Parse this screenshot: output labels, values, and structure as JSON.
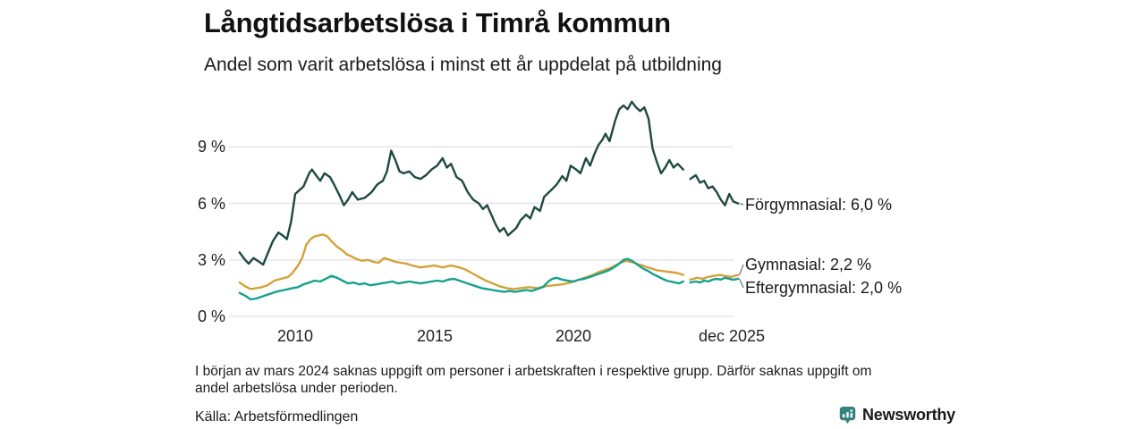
{
  "header": {
    "title": "Långtidsarbetslösa i Timrå kommun",
    "subtitle": "Andel som varit arbetslösa i minst ett år uppdelat på utbildning"
  },
  "chart_data": {
    "type": "line",
    "title": "Långtidsarbetslösa i Timrå kommun",
    "subtitle": "Andel som varit arbetslösa i minst ett år uppdelat på utbildning",
    "unit": "%",
    "grid": true,
    "legend_position": "right-of-line-ends",
    "x_axis": {
      "ticks": [
        "2010",
        "2015",
        "2020",
        "dec 2025"
      ],
      "tick_years": [
        2010,
        2015,
        2020,
        2025.92
      ],
      "range_years": [
        2008.0,
        2025.92
      ]
    },
    "y_axis": {
      "ticks": [
        "0 %",
        "3 %",
        "6 %",
        "9 %"
      ],
      "tick_values": [
        0,
        3,
        6,
        9
      ],
      "range": [
        0,
        11.7
      ]
    },
    "data_gap": "early 2024 (no labour-force data, see footnote)",
    "series": [
      {
        "name": "Förgymnasial",
        "color": "#1f4a41",
        "end_label": "Förgymnasial: 6,0 %",
        "end_value": 6.0,
        "points": [
          [
            2008.0,
            3.4
          ],
          [
            2008.2,
            3.0
          ],
          [
            2008.33,
            2.8
          ],
          [
            2008.5,
            3.1
          ],
          [
            2008.7,
            2.9
          ],
          [
            2008.85,
            2.75
          ],
          [
            2009.0,
            3.3
          ],
          [
            2009.2,
            4.0
          ],
          [
            2009.4,
            4.45
          ],
          [
            2009.55,
            4.3
          ],
          [
            2009.7,
            4.1
          ],
          [
            2009.85,
            5.0
          ],
          [
            2010.0,
            6.5
          ],
          [
            2010.15,
            6.7
          ],
          [
            2010.3,
            6.9
          ],
          [
            2010.5,
            7.6
          ],
          [
            2010.6,
            7.8
          ],
          [
            2010.75,
            7.5
          ],
          [
            2010.9,
            7.2
          ],
          [
            2011.05,
            7.6
          ],
          [
            2011.25,
            7.4
          ],
          [
            2011.4,
            7.0
          ],
          [
            2011.6,
            6.4
          ],
          [
            2011.75,
            5.9
          ],
          [
            2011.9,
            6.2
          ],
          [
            2012.05,
            6.6
          ],
          [
            2012.25,
            6.2
          ],
          [
            2012.5,
            6.3
          ],
          [
            2012.75,
            6.6
          ],
          [
            2012.95,
            7.0
          ],
          [
            2013.15,
            7.2
          ],
          [
            2013.3,
            7.7
          ],
          [
            2013.45,
            8.8
          ],
          [
            2013.6,
            8.3
          ],
          [
            2013.75,
            7.7
          ],
          [
            2013.9,
            7.6
          ],
          [
            2014.1,
            7.7
          ],
          [
            2014.3,
            7.4
          ],
          [
            2014.5,
            7.3
          ],
          [
            2014.7,
            7.5
          ],
          [
            2014.9,
            7.8
          ],
          [
            2015.1,
            8.0
          ],
          [
            2015.3,
            8.4
          ],
          [
            2015.45,
            7.9
          ],
          [
            2015.6,
            8.1
          ],
          [
            2015.8,
            7.4
          ],
          [
            2016.0,
            7.2
          ],
          [
            2016.2,
            6.6
          ],
          [
            2016.4,
            6.2
          ],
          [
            2016.6,
            6.0
          ],
          [
            2016.75,
            5.7
          ],
          [
            2016.9,
            5.9
          ],
          [
            2017.05,
            5.4
          ],
          [
            2017.2,
            4.9
          ],
          [
            2017.35,
            4.5
          ],
          [
            2017.5,
            4.7
          ],
          [
            2017.65,
            4.3
          ],
          [
            2017.8,
            4.5
          ],
          [
            2017.95,
            4.7
          ],
          [
            2018.1,
            5.1
          ],
          [
            2018.3,
            5.4
          ],
          [
            2018.45,
            5.2
          ],
          [
            2018.6,
            5.8
          ],
          [
            2018.8,
            5.6
          ],
          [
            2018.95,
            6.35
          ],
          [
            2019.2,
            6.7
          ],
          [
            2019.4,
            7.0
          ],
          [
            2019.6,
            7.45
          ],
          [
            2019.75,
            7.2
          ],
          [
            2019.9,
            8.0
          ],
          [
            2020.1,
            7.8
          ],
          [
            2020.25,
            7.6
          ],
          [
            2020.45,
            8.4
          ],
          [
            2020.6,
            8.0
          ],
          [
            2020.75,
            8.6
          ],
          [
            2020.9,
            9.1
          ],
          [
            2021.05,
            9.4
          ],
          [
            2021.15,
            9.7
          ],
          [
            2021.3,
            9.3
          ],
          [
            2021.5,
            10.4
          ],
          [
            2021.65,
            11.0
          ],
          [
            2021.8,
            11.2
          ],
          [
            2021.95,
            11.0
          ],
          [
            2022.1,
            11.4
          ],
          [
            2022.25,
            11.1
          ],
          [
            2022.4,
            10.9
          ],
          [
            2022.55,
            11.1
          ],
          [
            2022.7,
            10.5
          ],
          [
            2022.85,
            8.9
          ],
          [
            2023.0,
            8.2
          ],
          [
            2023.15,
            7.6
          ],
          [
            2023.3,
            7.9
          ],
          [
            2023.45,
            8.3
          ],
          [
            2023.6,
            7.9
          ],
          [
            2023.75,
            8.1
          ],
          [
            2023.95,
            7.8
          ],
          null,
          [
            2024.2,
            7.3
          ],
          [
            2024.4,
            7.5
          ],
          [
            2024.55,
            7.1
          ],
          [
            2024.7,
            7.2
          ],
          [
            2024.85,
            6.8
          ],
          [
            2025.0,
            6.9
          ],
          [
            2025.15,
            6.6
          ],
          [
            2025.3,
            6.2
          ],
          [
            2025.45,
            5.9
          ],
          [
            2025.6,
            6.5
          ],
          [
            2025.75,
            6.1
          ],
          [
            2025.92,
            6.0
          ]
        ]
      },
      {
        "name": "Gymnasial",
        "color": "#d4a13c",
        "end_label": "Gymnasial: 2,2 %",
        "end_value": 2.2,
        "points": [
          [
            2008.0,
            1.8
          ],
          [
            2008.2,
            1.6
          ],
          [
            2008.4,
            1.45
          ],
          [
            2008.6,
            1.5
          ],
          [
            2008.8,
            1.55
          ],
          [
            2009.0,
            1.65
          ],
          [
            2009.25,
            1.9
          ],
          [
            2009.5,
            2.0
          ],
          [
            2009.75,
            2.1
          ],
          [
            2009.9,
            2.3
          ],
          [
            2010.1,
            2.7
          ],
          [
            2010.25,
            3.1
          ],
          [
            2010.4,
            3.8
          ],
          [
            2010.55,
            4.1
          ],
          [
            2010.7,
            4.25
          ],
          [
            2010.85,
            4.3
          ],
          [
            2011.0,
            4.35
          ],
          [
            2011.15,
            4.25
          ],
          [
            2011.3,
            4.0
          ],
          [
            2011.5,
            3.7
          ],
          [
            2011.7,
            3.5
          ],
          [
            2011.85,
            3.3
          ],
          [
            2012.0,
            3.2
          ],
          [
            2012.2,
            3.05
          ],
          [
            2012.4,
            2.95
          ],
          [
            2012.6,
            3.0
          ],
          [
            2012.8,
            2.9
          ],
          [
            2013.0,
            2.85
          ],
          [
            2013.2,
            3.1
          ],
          [
            2013.4,
            3.0
          ],
          [
            2013.6,
            2.9
          ],
          [
            2013.8,
            2.85
          ],
          [
            2014.0,
            2.8
          ],
          [
            2014.2,
            2.7
          ],
          [
            2014.5,
            2.6
          ],
          [
            2014.75,
            2.65
          ],
          [
            2015.0,
            2.7
          ],
          [
            2015.3,
            2.6
          ],
          [
            2015.6,
            2.7
          ],
          [
            2015.9,
            2.6
          ],
          [
            2016.1,
            2.5
          ],
          [
            2016.35,
            2.3
          ],
          [
            2016.6,
            2.1
          ],
          [
            2016.85,
            1.9
          ],
          [
            2017.1,
            1.75
          ],
          [
            2017.35,
            1.6
          ],
          [
            2017.6,
            1.5
          ],
          [
            2017.85,
            1.45
          ],
          [
            2018.1,
            1.5
          ],
          [
            2018.4,
            1.55
          ],
          [
            2018.7,
            1.5
          ],
          [
            2019.0,
            1.6
          ],
          [
            2019.3,
            1.65
          ],
          [
            2019.6,
            1.7
          ],
          [
            2019.9,
            1.8
          ],
          [
            2020.1,
            1.9
          ],
          [
            2020.3,
            2.0
          ],
          [
            2020.5,
            2.1
          ],
          [
            2020.7,
            2.2
          ],
          [
            2020.9,
            2.35
          ],
          [
            2021.1,
            2.45
          ],
          [
            2021.3,
            2.55
          ],
          [
            2021.5,
            2.7
          ],
          [
            2021.7,
            2.85
          ],
          [
            2021.9,
            2.95
          ],
          [
            2022.05,
            2.9
          ],
          [
            2022.2,
            2.85
          ],
          [
            2022.35,
            2.75
          ],
          [
            2022.5,
            2.7
          ],
          [
            2022.65,
            2.6
          ],
          [
            2022.8,
            2.55
          ],
          [
            2023.0,
            2.45
          ],
          [
            2023.25,
            2.4
          ],
          [
            2023.5,
            2.35
          ],
          [
            2023.75,
            2.3
          ],
          [
            2023.95,
            2.2
          ],
          null,
          [
            2024.2,
            1.95
          ],
          [
            2024.45,
            2.05
          ],
          [
            2024.65,
            2.0
          ],
          [
            2024.85,
            2.1
          ],
          [
            2025.05,
            2.15
          ],
          [
            2025.25,
            2.2
          ],
          [
            2025.45,
            2.15
          ],
          [
            2025.65,
            2.1
          ],
          [
            2025.8,
            2.15
          ],
          [
            2025.92,
            2.2
          ]
        ]
      },
      {
        "name": "Eftergymnasial",
        "color": "#15a18c",
        "end_label": "Eftergymnasial: 2,0 %",
        "end_value": 2.0,
        "points": [
          [
            2008.0,
            1.25
          ],
          [
            2008.2,
            1.1
          ],
          [
            2008.4,
            0.9
          ],
          [
            2008.6,
            0.95
          ],
          [
            2008.8,
            1.05
          ],
          [
            2009.0,
            1.15
          ],
          [
            2009.3,
            1.3
          ],
          [
            2009.6,
            1.4
          ],
          [
            2009.9,
            1.5
          ],
          [
            2010.1,
            1.55
          ],
          [
            2010.3,
            1.7
          ],
          [
            2010.5,
            1.8
          ],
          [
            2010.7,
            1.9
          ],
          [
            2010.9,
            1.85
          ],
          [
            2011.1,
            2.0
          ],
          [
            2011.3,
            2.15
          ],
          [
            2011.5,
            2.05
          ],
          [
            2011.7,
            1.9
          ],
          [
            2011.9,
            1.75
          ],
          [
            2012.1,
            1.8
          ],
          [
            2012.3,
            1.7
          ],
          [
            2012.5,
            1.75
          ],
          [
            2012.7,
            1.65
          ],
          [
            2012.9,
            1.7
          ],
          [
            2013.1,
            1.75
          ],
          [
            2013.3,
            1.8
          ],
          [
            2013.5,
            1.85
          ],
          [
            2013.7,
            1.75
          ],
          [
            2013.9,
            1.8
          ],
          [
            2014.1,
            1.85
          ],
          [
            2014.3,
            1.8
          ],
          [
            2014.5,
            1.75
          ],
          [
            2014.7,
            1.8
          ],
          [
            2014.9,
            1.85
          ],
          [
            2015.1,
            1.9
          ],
          [
            2015.3,
            1.85
          ],
          [
            2015.5,
            1.95
          ],
          [
            2015.7,
            2.0
          ],
          [
            2015.9,
            1.9
          ],
          [
            2016.1,
            1.8
          ],
          [
            2016.3,
            1.7
          ],
          [
            2016.5,
            1.6
          ],
          [
            2016.7,
            1.5
          ],
          [
            2016.9,
            1.45
          ],
          [
            2017.1,
            1.4
          ],
          [
            2017.3,
            1.35
          ],
          [
            2017.5,
            1.3
          ],
          [
            2017.7,
            1.35
          ],
          [
            2017.9,
            1.3
          ],
          [
            2018.1,
            1.35
          ],
          [
            2018.3,
            1.4
          ],
          [
            2018.5,
            1.35
          ],
          [
            2018.7,
            1.45
          ],
          [
            2018.9,
            1.55
          ],
          [
            2019.1,
            1.85
          ],
          [
            2019.25,
            2.0
          ],
          [
            2019.4,
            2.05
          ],
          [
            2019.6,
            1.95
          ],
          [
            2019.8,
            1.9
          ],
          [
            2020.0,
            1.85
          ],
          [
            2020.2,
            1.95
          ],
          [
            2020.4,
            2.0
          ],
          [
            2020.6,
            2.1
          ],
          [
            2020.8,
            2.2
          ],
          [
            2021.0,
            2.3
          ],
          [
            2021.2,
            2.4
          ],
          [
            2021.4,
            2.55
          ],
          [
            2021.6,
            2.75
          ],
          [
            2021.8,
            3.0
          ],
          [
            2021.95,
            3.05
          ],
          [
            2022.1,
            2.95
          ],
          [
            2022.25,
            2.8
          ],
          [
            2022.4,
            2.65
          ],
          [
            2022.55,
            2.5
          ],
          [
            2022.7,
            2.4
          ],
          [
            2022.85,
            2.25
          ],
          [
            2023.0,
            2.15
          ],
          [
            2023.2,
            2.0
          ],
          [
            2023.35,
            1.9
          ],
          [
            2023.5,
            1.85
          ],
          [
            2023.65,
            1.8
          ],
          [
            2023.8,
            1.75
          ],
          [
            2023.95,
            1.85
          ],
          null,
          [
            2024.2,
            1.8
          ],
          [
            2024.4,
            1.85
          ],
          [
            2024.55,
            1.8
          ],
          [
            2024.7,
            1.9
          ],
          [
            2024.85,
            1.85
          ],
          [
            2025.0,
            1.95
          ],
          [
            2025.15,
            2.0
          ],
          [
            2025.3,
            1.95
          ],
          [
            2025.45,
            2.05
          ],
          [
            2025.6,
            2.0
          ],
          [
            2025.75,
            1.95
          ],
          [
            2025.92,
            2.0
          ]
        ]
      }
    ]
  },
  "footnote": {
    "line1": "I början av mars 2024 saknas uppgift om personer i arbetskraften i respektive grupp. Därför saknas uppgift om",
    "line2": "andel arbetslösa under perioden."
  },
  "source": {
    "label": "Källa: Arbetsförmedlingen"
  },
  "branding": {
    "name": "Newsworthy",
    "color": "#35837e",
    "icon": "bar-chart-speech-bubble-icon"
  },
  "colors": {
    "grid": "#e6e6ea",
    "text": "#1a1a1a",
    "leader_line": "#555555"
  }
}
